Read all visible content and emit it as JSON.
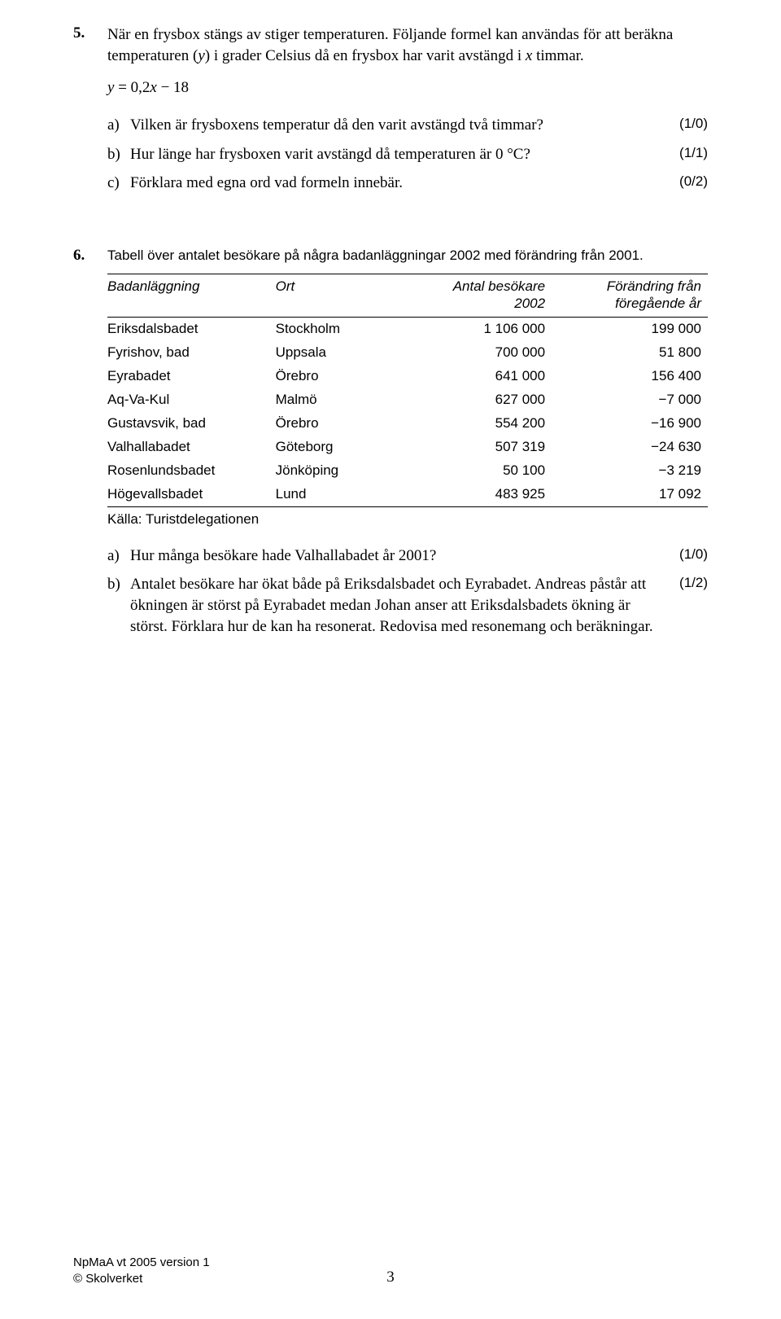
{
  "q5": {
    "number": "5.",
    "intro": "När en frysbox stängs av stiger temperaturen. Följande formel kan användas för att beräkna temperaturen (y) i grader Celsius då en frysbox har varit avstängd i x timmar.",
    "formula_prefix": "y",
    "formula_eq": " = 0,2",
    "formula_x": "x",
    "formula_suffix": " − 18",
    "a": {
      "letter": "a)",
      "text": "Vilken är frysboxens temperatur då den varit avstängd två timmar?",
      "score": "(1/0)"
    },
    "b": {
      "letter": "b)",
      "text": "Hur länge har frysboxen varit avstängd då temperaturen är 0 °C?",
      "score": "(1/1)"
    },
    "c": {
      "letter": "c)",
      "text": "Förklara med egna ord vad formeln innebär.",
      "score": "(0/2)"
    }
  },
  "q6": {
    "number": "6.",
    "intro": "Tabell över antalet besökare på några badanläggningar 2002 med förändring från 2001.",
    "table": {
      "columns": [
        "Badanläggning",
        "Ort",
        "Antal besökare\n2002",
        "Förändring från\nföregående år"
      ],
      "rows": [
        [
          "Eriksdalsbadet",
          "Stockholm",
          "1 106 000",
          "199 000"
        ],
        [
          "Fyrishov, bad",
          "Uppsala",
          "700 000",
          "51 800"
        ],
        [
          "Eyrabadet",
          "Örebro",
          "641 000",
          "156 400"
        ],
        [
          "Aq-Va-Kul",
          "Malmö",
          "627 000",
          "−7 000"
        ],
        [
          "Gustavsvik, bad",
          "Örebro",
          "554 200",
          "−16 900"
        ],
        [
          "Valhallabadet",
          "Göteborg",
          "507 319",
          "−24 630"
        ],
        [
          "Rosenlundsbadet",
          "Jönköping",
          "50 100",
          "−3 219"
        ],
        [
          "Högevallsbadet",
          "Lund",
          "483 925",
          "17 092"
        ]
      ]
    },
    "source": "Källa: Turistdelegationen",
    "a": {
      "letter": "a)",
      "text": "Hur många besökare hade Valhallabadet år 2001?",
      "score": "(1/0)"
    },
    "b": {
      "letter": "b)",
      "text": "Antalet besökare har ökat både på Eriksdalsbadet och Eyrabadet. Andreas påstår att ökningen är störst på Eyrabadet medan Johan anser att Eriksdalsbadets ökning är störst. Förklara hur de kan ha resonerat. Redovisa med resonemang och beräkningar.",
      "score": "(1/2)"
    }
  },
  "footer": {
    "line1": "NpMaA vt 2005 version 1",
    "line2": "© Skolverket",
    "page": "3"
  }
}
